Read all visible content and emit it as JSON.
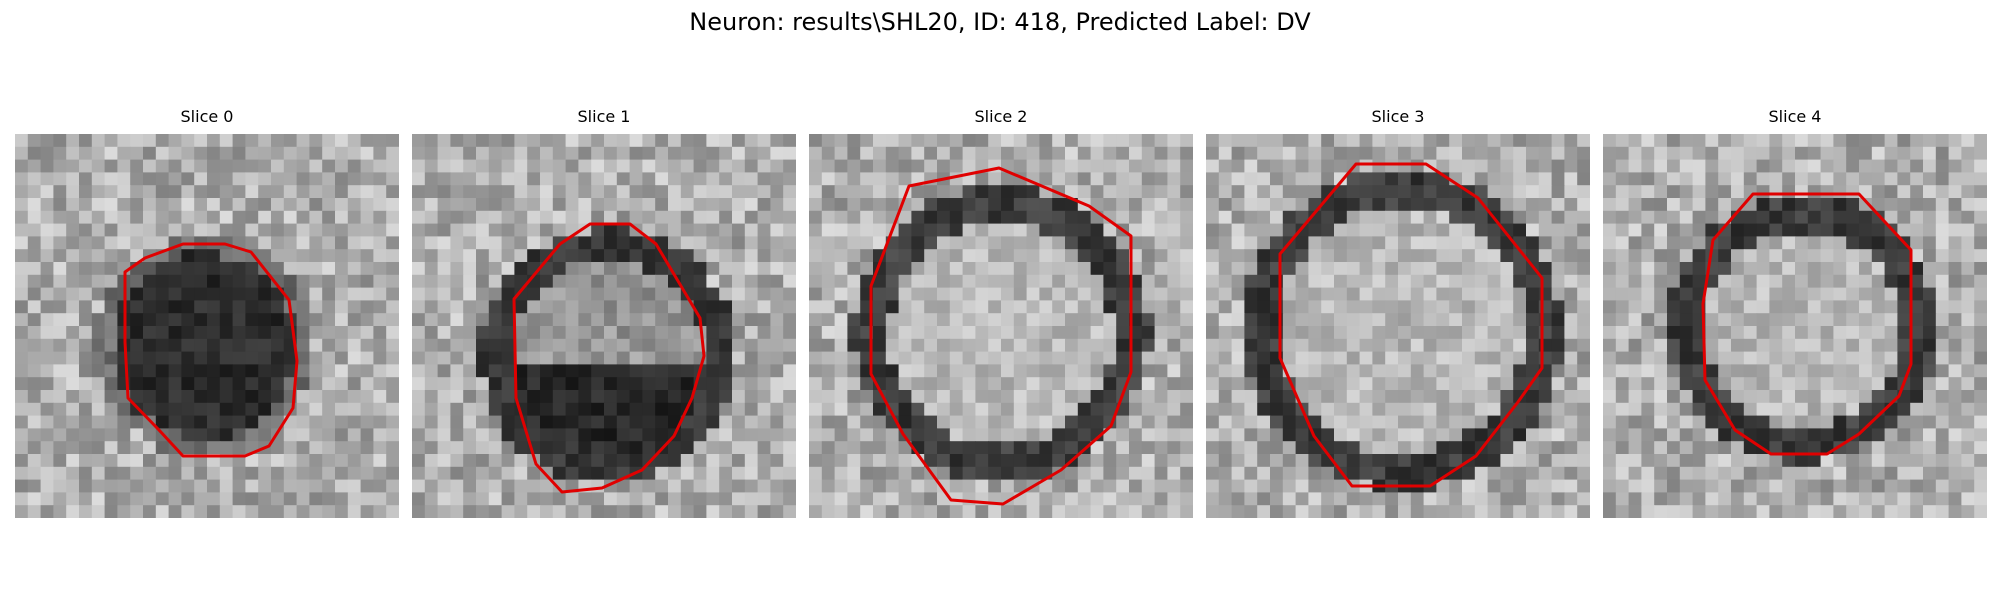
{
  "figure": {
    "title": "Neuron: results\\SHL20, ID: 418, Predicted Label: DV"
  },
  "colors": {
    "contour": "#e00000"
  },
  "panels": [
    {
      "title": "Slice 0",
      "interior": "dark"
    },
    {
      "title": "Slice 1",
      "interior": "dark-lower"
    },
    {
      "title": "Slice 2",
      "interior": "light"
    },
    {
      "title": "Slice 3",
      "interior": "light"
    },
    {
      "title": "Slice 4",
      "interior": "light"
    }
  ]
}
